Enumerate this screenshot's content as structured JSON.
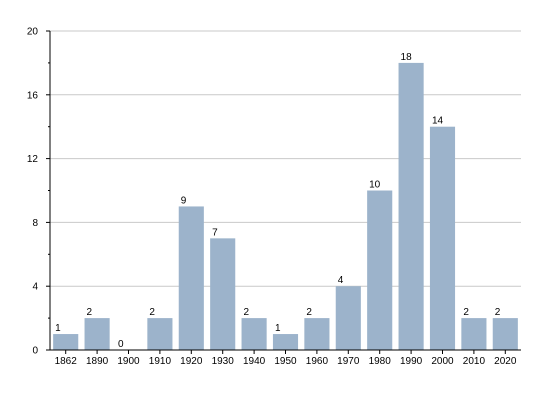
{
  "chart_data": {
    "type": "bar",
    "title": "",
    "xlabel": "",
    "ylabel": "",
    "categories": [
      "1862",
      "1890",
      "1900",
      "1910",
      "1920",
      "1930",
      "1940",
      "1950",
      "1960",
      "1970",
      "1980",
      "1990",
      "2000",
      "2010",
      "2020"
    ],
    "values": [
      1,
      2,
      0,
      2,
      9,
      7,
      2,
      1,
      2,
      4,
      10,
      18,
      14,
      2,
      2
    ],
    "value_labels": [
      "1",
      "2",
      "0",
      "2",
      "9",
      "7",
      "2",
      "1",
      "2",
      "4",
      "10",
      "18",
      "14",
      "2",
      "2"
    ],
    "ylim": [
      0,
      20
    ],
    "yticks": [
      "0",
      "4",
      "8",
      "12",
      "16",
      "20"
    ],
    "ytick_values": [
      0,
      4,
      8,
      12,
      16,
      20
    ],
    "minor_yticks": [
      2,
      6,
      10,
      14,
      18
    ],
    "grid": true,
    "legend": "none",
    "colors": {
      "bar": "#9cb3cb",
      "grid": "#c9c9c9",
      "axis": "#000000",
      "text": "#000000"
    }
  }
}
